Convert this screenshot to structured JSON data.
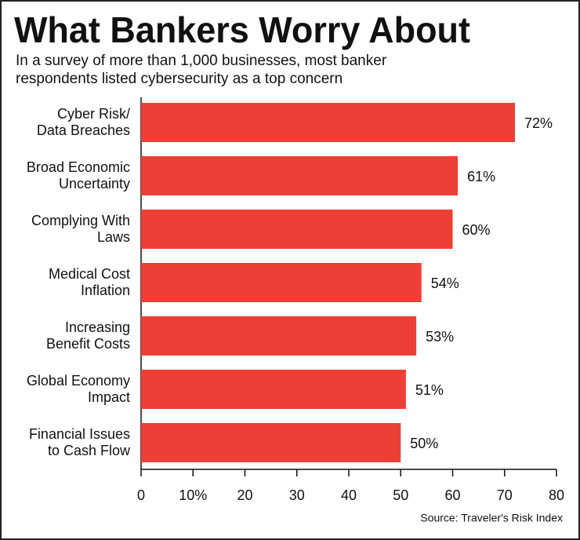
{
  "chart_data": {
    "type": "hbar",
    "title": "What Bankers Worry About",
    "subtitle": "In a survey of more than 1,000 businesses, most banker\nrespondents listed cybersecurity as a top concern",
    "source": "Source: Traveler's Risk Index",
    "categories": [
      "Cyber Risk/\nData Breaches",
      "Broad Economic\nUncertainty",
      "Complying With\nLaws",
      "Medical Cost\nInflation",
      "Increasing\nBenefit Costs",
      "Global Economy\nImpact",
      "Financial Issues\nto Cash Flow"
    ],
    "values": [
      72,
      61,
      60,
      54,
      53,
      51,
      50
    ],
    "value_labels": [
      "72%",
      "61%",
      "60%",
      "54%",
      "53%",
      "51%",
      "50%"
    ],
    "color": "#ee3f37",
    "xlim": [
      0,
      80
    ],
    "xticks": [
      0,
      {
        "value": 10,
        "label": "10%"
      },
      20,
      30,
      40,
      50,
      60,
      70,
      80
    ]
  }
}
